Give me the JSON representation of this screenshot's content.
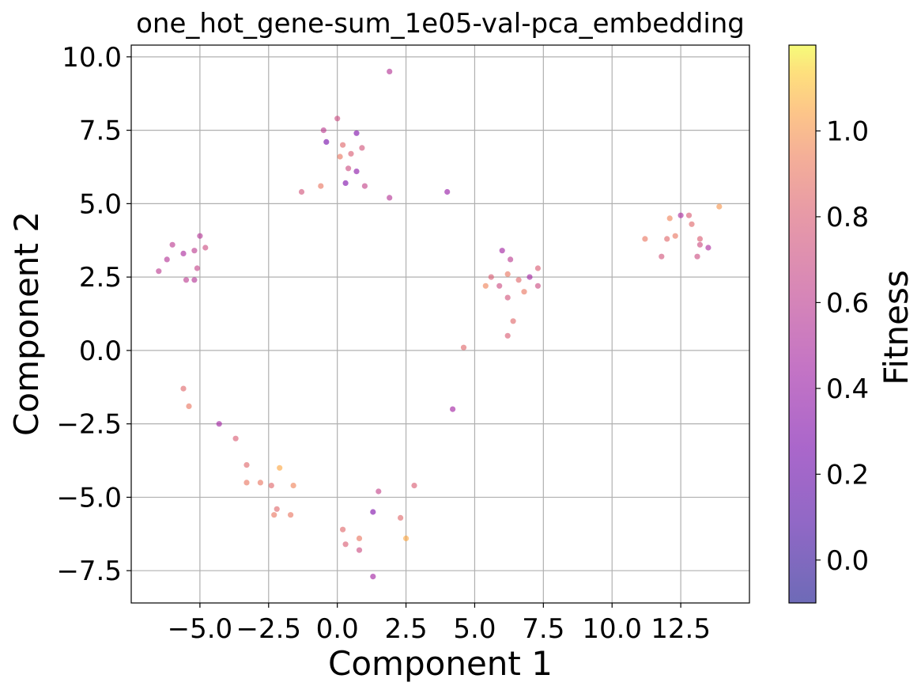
{
  "chart_data": {
    "type": "scatter",
    "title": "one_hot_gene-sum_1e05-val-pca_embedding",
    "xlabel": "Component 1",
    "ylabel": "Component 2",
    "xlim": [
      -7.5,
      15.0
    ],
    "ylim": [
      -8.6,
      10.4
    ],
    "xticks": [
      -5.0,
      -2.5,
      0.0,
      2.5,
      5.0,
      7.5,
      10.0,
      12.5
    ],
    "xtick_labels": [
      "−5.0",
      "−2.5",
      "0.0",
      "2.5",
      "5.0",
      "7.5",
      "10.0",
      "12.5"
    ],
    "yticks": [
      -7.5,
      -5.0,
      -2.5,
      0.0,
      2.5,
      5.0,
      7.5,
      10.0
    ],
    "ytick_labels": [
      "−7.5",
      "−5.0",
      "−2.5",
      "0.0",
      "2.5",
      "5.0",
      "7.5",
      "10.0"
    ],
    "grid": true,
    "colormap": "plasma",
    "point_alpha": 0.6,
    "colorbar": {
      "label": "Fitness",
      "min": -0.1,
      "max": 1.2,
      "ticks": [
        0.0,
        0.2,
        0.4,
        0.6,
        0.8,
        1.0
      ],
      "tick_labels": [
        "0.0",
        "0.2",
        "0.4",
        "0.6",
        "0.8",
        "1.0"
      ]
    },
    "series": [
      {
        "values": [
          {
            "x": 1.9,
            "y": 9.5,
            "c": 0.55
          },
          {
            "x": 0.0,
            "y": 7.9,
            "c": 0.7
          },
          {
            "x": -0.5,
            "y": 7.5,
            "c": 0.6
          },
          {
            "x": 0.7,
            "y": 7.4,
            "c": 0.3
          },
          {
            "x": -0.4,
            "y": 7.1,
            "c": 0.25
          },
          {
            "x": 0.2,
            "y": 7.0,
            "c": 0.85
          },
          {
            "x": 0.9,
            "y": 6.9,
            "c": 0.75
          },
          {
            "x": 0.5,
            "y": 6.7,
            "c": 0.8
          },
          {
            "x": 0.1,
            "y": 6.6,
            "c": 0.9
          },
          {
            "x": 0.4,
            "y": 6.2,
            "c": 0.7
          },
          {
            "x": 0.7,
            "y": 6.1,
            "c": 0.35
          },
          {
            "x": 0.3,
            "y": 5.7,
            "c": 0.3
          },
          {
            "x": 1.0,
            "y": 5.6,
            "c": 0.65
          },
          {
            "x": 4.0,
            "y": 5.4,
            "c": 0.4
          },
          {
            "x": 1.9,
            "y": 5.2,
            "c": 0.55
          },
          {
            "x": -0.6,
            "y": 5.6,
            "c": 0.9
          },
          {
            "x": -1.3,
            "y": 5.4,
            "c": 0.75
          },
          {
            "x": -6.5,
            "y": 2.7,
            "c": 0.6
          },
          {
            "x": -6.2,
            "y": 3.1,
            "c": 0.55
          },
          {
            "x": -6.0,
            "y": 3.6,
            "c": 0.6
          },
          {
            "x": -5.6,
            "y": 3.3,
            "c": 0.5
          },
          {
            "x": -5.2,
            "y": 3.4,
            "c": 0.6
          },
          {
            "x": -5.0,
            "y": 3.9,
            "c": 0.55
          },
          {
            "x": -5.1,
            "y": 2.8,
            "c": 0.65
          },
          {
            "x": -4.8,
            "y": 3.5,
            "c": 0.7
          },
          {
            "x": -5.5,
            "y": 2.4,
            "c": 0.6
          },
          {
            "x": -5.2,
            "y": 2.4,
            "c": 0.55
          },
          {
            "x": -5.6,
            "y": -1.3,
            "c": 0.85
          },
          {
            "x": -5.4,
            "y": -1.9,
            "c": 0.9
          },
          {
            "x": -4.3,
            "y": -2.5,
            "c": 0.45
          },
          {
            "x": -3.3,
            "y": -3.9,
            "c": 0.85
          },
          {
            "x": -3.3,
            "y": -4.5,
            "c": 0.9
          },
          {
            "x": -2.8,
            "y": -4.5,
            "c": 0.9
          },
          {
            "x": -2.4,
            "y": -4.6,
            "c": 0.85
          },
          {
            "x": -2.1,
            "y": -4.0,
            "c": 1.05
          },
          {
            "x": -1.6,
            "y": -4.6,
            "c": 0.95
          },
          {
            "x": -2.2,
            "y": -5.4,
            "c": 0.85
          },
          {
            "x": -1.7,
            "y": -5.6,
            "c": 0.9
          },
          {
            "x": -2.3,
            "y": -5.6,
            "c": 0.9
          },
          {
            "x": 0.2,
            "y": -6.1,
            "c": 0.85
          },
          {
            "x": 0.3,
            "y": -6.6,
            "c": 0.8
          },
          {
            "x": 0.8,
            "y": -6.4,
            "c": 0.9
          },
          {
            "x": 0.8,
            "y": -6.8,
            "c": 0.7
          },
          {
            "x": 1.3,
            "y": -5.5,
            "c": 0.3
          },
          {
            "x": 1.5,
            "y": -4.8,
            "c": 0.65
          },
          {
            "x": 2.3,
            "y": -5.7,
            "c": 0.85
          },
          {
            "x": 2.5,
            "y": -6.4,
            "c": 1.05
          },
          {
            "x": 2.8,
            "y": -4.6,
            "c": 0.8
          },
          {
            "x": 1.3,
            "y": -7.7,
            "c": 0.45
          },
          {
            "x": 6.0,
            "y": 3.4,
            "c": 0.45
          },
          {
            "x": 6.3,
            "y": 3.1,
            "c": 0.6
          },
          {
            "x": 5.6,
            "y": 2.5,
            "c": 0.8
          },
          {
            "x": 5.9,
            "y": 2.2,
            "c": 0.7
          },
          {
            "x": 6.2,
            "y": 2.6,
            "c": 0.9
          },
          {
            "x": 6.6,
            "y": 2.4,
            "c": 0.85
          },
          {
            "x": 7.0,
            "y": 2.5,
            "c": 0.45
          },
          {
            "x": 7.3,
            "y": 2.2,
            "c": 0.7
          },
          {
            "x": 7.3,
            "y": 2.8,
            "c": 0.8
          },
          {
            "x": 6.8,
            "y": 2.0,
            "c": 0.9
          },
          {
            "x": 6.2,
            "y": 1.8,
            "c": 0.75
          },
          {
            "x": 6.4,
            "y": 1.0,
            "c": 0.85
          },
          {
            "x": 6.2,
            "y": 0.5,
            "c": 0.8
          },
          {
            "x": 5.4,
            "y": 2.2,
            "c": 0.95
          },
          {
            "x": 12.5,
            "y": 4.6,
            "c": 0.5
          },
          {
            "x": 12.8,
            "y": 4.6,
            "c": 0.8
          },
          {
            "x": 12.1,
            "y": 4.5,
            "c": 0.95
          },
          {
            "x": 12.9,
            "y": 4.3,
            "c": 0.85
          },
          {
            "x": 13.9,
            "y": 4.9,
            "c": 1.0
          },
          {
            "x": 11.2,
            "y": 3.8,
            "c": 0.9
          },
          {
            "x": 12.0,
            "y": 3.8,
            "c": 0.85
          },
          {
            "x": 12.3,
            "y": 3.9,
            "c": 0.9
          },
          {
            "x": 13.2,
            "y": 3.8,
            "c": 0.8
          },
          {
            "x": 13.2,
            "y": 3.6,
            "c": 0.7
          },
          {
            "x": 13.5,
            "y": 3.5,
            "c": 0.5
          },
          {
            "x": 11.8,
            "y": 3.2,
            "c": 0.75
          },
          {
            "x": 13.1,
            "y": 3.2,
            "c": 0.7
          },
          {
            "x": 4.6,
            "y": 0.1,
            "c": 0.85
          },
          {
            "x": 4.2,
            "y": -2.0,
            "c": 0.45
          },
          {
            "x": -3.7,
            "y": -3.0,
            "c": 0.8
          }
        ]
      }
    ]
  }
}
